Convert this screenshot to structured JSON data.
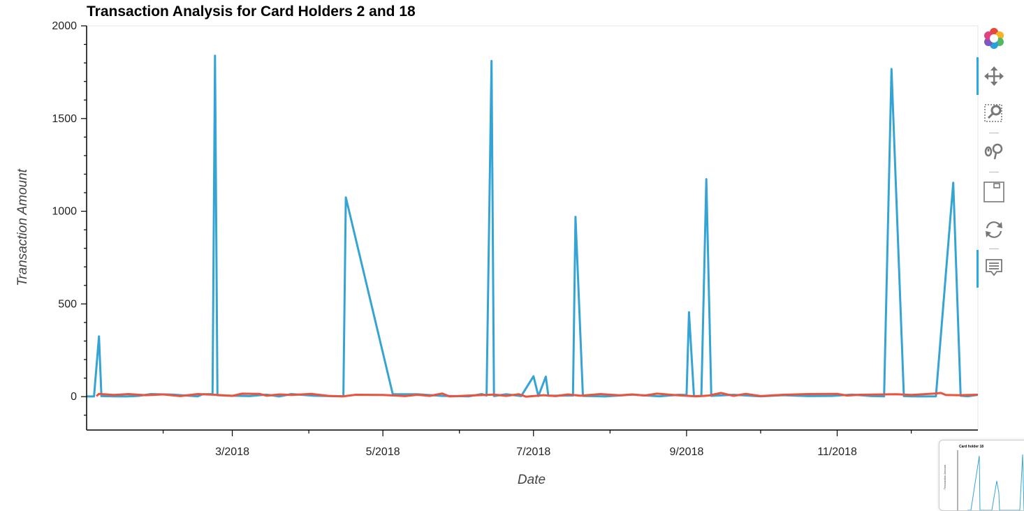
{
  "chart_data": {
    "type": "line",
    "title": "Transaction Analysis for Card Holders 2 and 18",
    "xlabel": "Date",
    "ylabel": "Transaction Amount",
    "x_tick_labels": [
      "3/2018",
      "5/2018",
      "7/2018",
      "9/2018",
      "11/2018"
    ],
    "x_tick_dates": [
      "2018-03-01",
      "2018-05-01",
      "2018-07-01",
      "2018-09-01",
      "2018-11-01"
    ],
    "xlim": [
      "2018-01-01",
      "2018-12-28"
    ],
    "y_tick_labels": [
      "0",
      "500",
      "1000",
      "1500",
      "2000"
    ],
    "y_ticks": [
      0,
      500,
      1000,
      1500,
      2000
    ],
    "ylim": [
      -180,
      2000
    ],
    "grid": false,
    "series": [
      {
        "name": "",
        "color": "#35a4d5",
        "points": [
          [
            "2018-01-01",
            1
          ],
          [
            "2018-01-04",
            1
          ],
          [
            "2018-01-06",
            325
          ],
          [
            "2018-01-07",
            3
          ],
          [
            "2018-01-12",
            2
          ],
          [
            "2018-01-17",
            1
          ],
          [
            "2018-01-22",
            4
          ],
          [
            "2018-01-27",
            14
          ],
          [
            "2018-02-05",
            11
          ],
          [
            "2018-02-15",
            2
          ],
          [
            "2018-02-17",
            13
          ],
          [
            "2018-02-21",
            14
          ],
          [
            "2018-02-22",
            1839
          ],
          [
            "2018-02-23",
            8
          ],
          [
            "2018-02-26",
            6
          ],
          [
            "2018-03-08",
            3
          ],
          [
            "2018-03-15",
            11
          ],
          [
            "2018-03-20",
            1
          ],
          [
            "2018-03-25",
            14
          ],
          [
            "2018-04-03",
            5
          ],
          [
            "2018-04-15",
            2
          ],
          [
            "2018-04-16",
            1075
          ],
          [
            "2018-05-05",
            13
          ],
          [
            "2018-05-15",
            13
          ],
          [
            "2018-05-25",
            4
          ],
          [
            "2018-06-05",
            2
          ],
          [
            "2018-06-10",
            14
          ],
          [
            "2018-06-12",
            6
          ],
          [
            "2018-06-14",
            1811
          ],
          [
            "2018-06-15",
            3
          ],
          [
            "2018-06-20",
            13
          ],
          [
            "2018-06-26",
            3
          ],
          [
            "2018-07-01",
            110
          ],
          [
            "2018-07-03",
            3
          ],
          [
            "2018-07-06",
            108
          ],
          [
            "2018-07-07",
            5
          ],
          [
            "2018-07-17",
            6
          ],
          [
            "2018-07-18",
            970
          ],
          [
            "2018-07-21",
            4
          ],
          [
            "2018-07-30",
            1
          ],
          [
            "2018-08-10",
            11
          ],
          [
            "2018-08-21",
            2
          ],
          [
            "2018-08-29",
            10
          ],
          [
            "2018-09-01",
            9
          ],
          [
            "2018-09-02",
            455
          ],
          [
            "2018-09-04",
            3
          ],
          [
            "2018-09-07",
            4
          ],
          [
            "2018-09-09",
            1173
          ],
          [
            "2018-09-11",
            4
          ],
          [
            "2018-09-20",
            10
          ],
          [
            "2018-10-01",
            2
          ],
          [
            "2018-10-10",
            8
          ],
          [
            "2018-10-20",
            3
          ],
          [
            "2018-10-30",
            4
          ],
          [
            "2018-11-07",
            11
          ],
          [
            "2018-11-15",
            3
          ],
          [
            "2018-11-20",
            2
          ],
          [
            "2018-11-23",
            1767
          ],
          [
            "2018-11-28",
            3
          ],
          [
            "2018-12-01",
            2
          ],
          [
            "2018-12-05",
            1
          ],
          [
            "2018-12-11",
            2
          ],
          [
            "2018-12-18",
            1154
          ],
          [
            "2018-12-21",
            5
          ],
          [
            "2018-12-24",
            2
          ],
          [
            "2018-12-28",
            10
          ]
        ]
      },
      {
        "name": "",
        "color": "#e9543e",
        "points": [
          [
            "2018-01-05",
            3
          ],
          [
            "2018-01-06",
            15
          ],
          [
            "2018-01-12",
            9
          ],
          [
            "2018-01-18",
            14
          ],
          [
            "2018-01-25",
            8
          ],
          [
            "2018-02-01",
            12
          ],
          [
            "2018-02-08",
            3
          ],
          [
            "2018-02-15",
            14
          ],
          [
            "2018-02-22",
            10
          ],
          [
            "2018-03-01",
            4
          ],
          [
            "2018-03-05",
            16
          ],
          [
            "2018-03-12",
            15
          ],
          [
            "2018-03-15",
            5
          ],
          [
            "2018-03-20",
            12
          ],
          [
            "2018-03-25",
            9
          ],
          [
            "2018-04-02",
            15
          ],
          [
            "2018-04-09",
            4
          ],
          [
            "2018-04-15",
            2
          ],
          [
            "2018-04-20",
            10
          ],
          [
            "2018-05-01",
            9
          ],
          [
            "2018-05-10",
            3
          ],
          [
            "2018-05-15",
            10
          ],
          [
            "2018-05-20",
            4
          ],
          [
            "2018-05-25",
            17
          ],
          [
            "2018-05-28",
            1
          ],
          [
            "2018-06-05",
            6
          ],
          [
            "2018-06-15",
            11
          ],
          [
            "2018-06-20",
            4
          ],
          [
            "2018-06-25",
            13
          ],
          [
            "2018-06-28",
            0
          ],
          [
            "2018-07-05",
            8
          ],
          [
            "2018-07-10",
            3
          ],
          [
            "2018-07-15",
            12
          ],
          [
            "2018-07-20",
            5
          ],
          [
            "2018-07-28",
            14
          ],
          [
            "2018-08-05",
            7
          ],
          [
            "2018-08-10",
            12
          ],
          [
            "2018-08-15",
            6
          ],
          [
            "2018-08-20",
            16
          ],
          [
            "2018-08-28",
            8
          ],
          [
            "2018-09-05",
            2
          ],
          [
            "2018-09-10",
            6
          ],
          [
            "2018-09-15",
            20
          ],
          [
            "2018-09-20",
            4
          ],
          [
            "2018-09-25",
            15
          ],
          [
            "2018-10-01",
            3
          ],
          [
            "2018-10-10",
            10
          ],
          [
            "2018-10-20",
            14
          ],
          [
            "2018-11-01",
            15
          ],
          [
            "2018-11-05",
            6
          ],
          [
            "2018-11-10",
            10
          ],
          [
            "2018-11-20",
            12
          ],
          [
            "2018-11-25",
            13
          ],
          [
            "2018-12-01",
            9
          ],
          [
            "2018-12-10",
            16
          ],
          [
            "2018-12-13",
            20
          ],
          [
            "2018-12-15",
            9
          ],
          [
            "2018-12-20",
            8
          ],
          [
            "2018-12-28",
            10
          ]
        ]
      }
    ]
  },
  "toolbar": {
    "tools": [
      "bokeh-logo-icon",
      "pan-icon",
      "box-zoom-icon",
      "wheel-zoom-icon",
      "save-icon",
      "reset-icon",
      "hover-icon"
    ]
  },
  "thumbnail": {
    "title": "Card holder 18",
    "ylabel": "Transaction Amount"
  }
}
